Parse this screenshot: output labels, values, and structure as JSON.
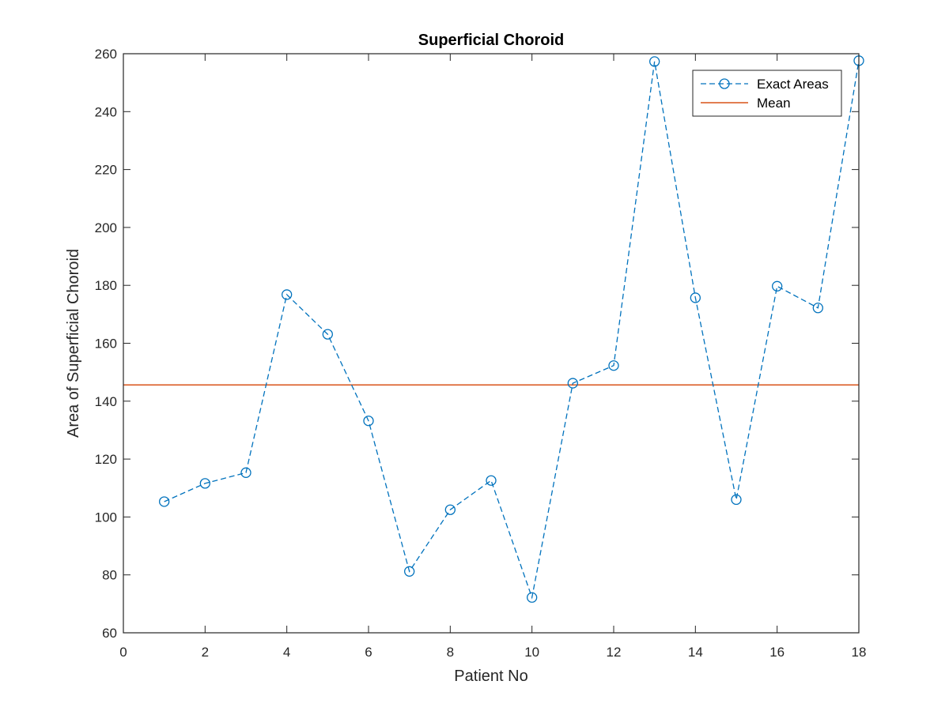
{
  "chart_data": {
    "type": "line",
    "title": "Superficial Choroid",
    "xlabel": "Patient No",
    "ylabel": "Area of Superficial Choroid",
    "xlim": [
      0,
      18
    ],
    "ylim": [
      60,
      260
    ],
    "xticks": [
      0,
      2,
      4,
      6,
      8,
      10,
      12,
      14,
      16,
      18
    ],
    "yticks": [
      60,
      80,
      100,
      120,
      140,
      160,
      180,
      200,
      220,
      240,
      260
    ],
    "grid": false,
    "legend_position": "top-right",
    "series": [
      {
        "name": "Exact Areas",
        "style": "dashed line with circle markers",
        "color": "#0072BD",
        "x": [
          1,
          2,
          3,
          4,
          5,
          6,
          7,
          8,
          9,
          10,
          11,
          12,
          13,
          14,
          15,
          16,
          17,
          18
        ],
        "y": [
          105.3,
          111.6,
          115.3,
          176.8,
          163.1,
          133.2,
          81.2,
          102.5,
          112.6,
          72.2,
          146.2,
          152.3,
          257.3,
          175.7,
          106.0,
          179.7,
          172.2,
          257.6
        ]
      },
      {
        "name": "Mean",
        "style": "solid line",
        "color": "#D95319",
        "x": [
          0,
          18
        ],
        "y": [
          145.6,
          145.6
        ]
      }
    ]
  }
}
